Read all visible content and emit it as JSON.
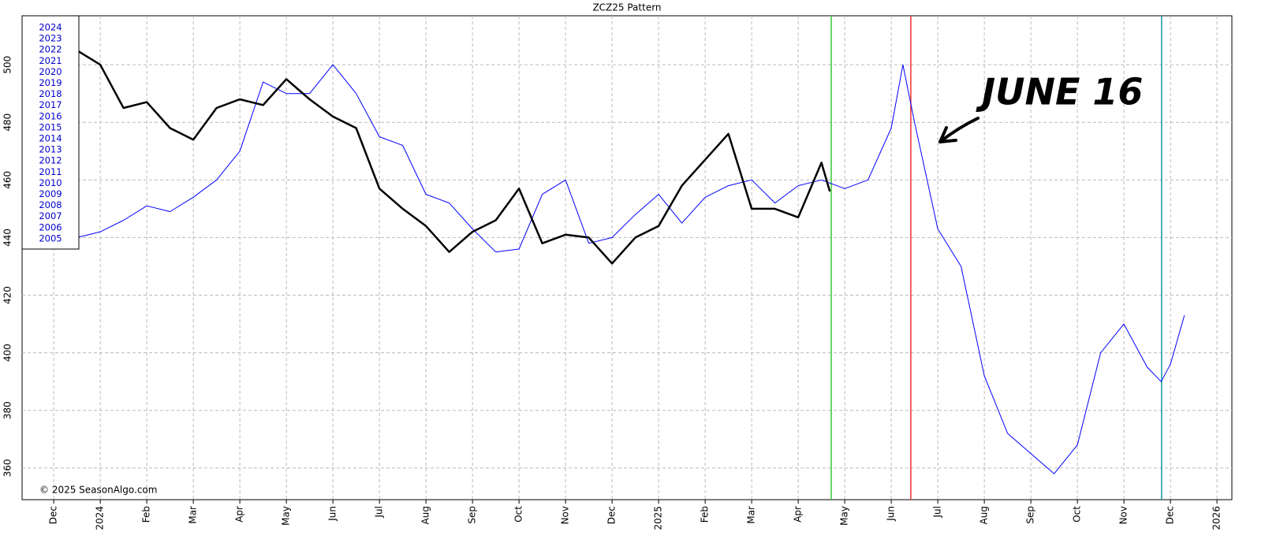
{
  "chart_data": {
    "type": "line",
    "title": "ZCZ25  Pattern",
    "annotation": "JUNE 16",
    "copyright": "© 2025 SeasonAlgo.com",
    "legend": [
      "2024",
      "2023",
      "2022",
      "2021",
      "2020",
      "2019",
      "2018",
      "2017",
      "2016",
      "2015",
      "2014",
      "2013",
      "2012",
      "2011",
      "2010",
      "2009",
      "2008",
      "2007",
      "2006",
      "2005"
    ],
    "xlim": [
      -0.68,
      25.32
    ],
    "ylim": [
      349,
      517
    ],
    "xticks": [
      {
        "value": 0,
        "label": "Dec"
      },
      {
        "value": 1,
        "label": "2024"
      },
      {
        "value": 2,
        "label": "Feb"
      },
      {
        "value": 3,
        "label": "Mar"
      },
      {
        "value": 4,
        "label": "Apr"
      },
      {
        "value": 5,
        "label": "May"
      },
      {
        "value": 6,
        "label": "Jun"
      },
      {
        "value": 7,
        "label": "Jul"
      },
      {
        "value": 8,
        "label": "Aug"
      },
      {
        "value": 9,
        "label": "Sep"
      },
      {
        "value": 10,
        "label": "Oct"
      },
      {
        "value": 11,
        "label": "Nov"
      },
      {
        "value": 12,
        "label": "Dec"
      },
      {
        "value": 13,
        "label": "2025"
      },
      {
        "value": 14,
        "label": "Feb"
      },
      {
        "value": 15,
        "label": "Mar"
      },
      {
        "value": 16,
        "label": "Apr"
      },
      {
        "value": 17,
        "label": "May"
      },
      {
        "value": 18,
        "label": "Jun"
      },
      {
        "value": 19,
        "label": "Jul"
      },
      {
        "value": 20,
        "label": "Aug"
      },
      {
        "value": 21,
        "label": "Sep"
      },
      {
        "value": 22,
        "label": "Oct"
      },
      {
        "value": 23,
        "label": "Nov"
      },
      {
        "value": 24,
        "label": "Dec"
      },
      {
        "value": 25,
        "label": "2026"
      }
    ],
    "yticks": [
      360,
      380,
      400,
      420,
      440,
      460,
      480,
      500
    ],
    "grid": true,
    "vlines": [
      {
        "x": 16.71,
        "color": "#33cc33"
      },
      {
        "x": 18.42,
        "color": "#ee3333"
      },
      {
        "x": 23.81,
        "color": "#1199aa"
      }
    ],
    "series": [
      {
        "color": "#0000ff",
        "width": 1,
        "x": [
          0.5,
          1,
          1.5,
          2,
          2.5,
          3,
          3.5,
          4,
          4.5,
          5,
          5.5,
          6,
          6.5,
          7,
          7.5,
          8,
          8.5,
          9,
          9.5,
          10,
          10.5,
          11,
          11.5,
          12,
          12.5,
          13,
          13.5,
          14,
          14.5,
          15,
          15.5,
          16,
          16.5,
          17,
          17.5,
          18,
          18.25,
          18.5,
          19,
          19.5,
          20,
          20.5,
          21,
          21.5,
          22,
          22.5,
          23,
          23.5,
          23.8,
          24,
          24.3
        ],
        "values": [
          440,
          442,
          446,
          451,
          449,
          454,
          460,
          470,
          494,
          490,
          490,
          500,
          490,
          475,
          472,
          455,
          452,
          443,
          435,
          436,
          455,
          460,
          438,
          440,
          448,
          455,
          445,
          454,
          458,
          460,
          452,
          458,
          460,
          457,
          460,
          478,
          500,
          480,
          443,
          430,
          392,
          372,
          365,
          358,
          368,
          400,
          410,
          395,
          390,
          396,
          413
        ]
      },
      {
        "color": "#000000",
        "width": 2.5,
        "x": [
          0.5,
          1,
          1.5,
          2,
          2.5,
          3,
          3.5,
          4,
          4.5,
          5,
          5.5,
          6,
          6.5,
          7,
          7.5,
          8,
          8.5,
          9,
          9.5,
          10,
          10.5,
          11,
          11.5,
          12,
          12.5,
          13,
          13.5,
          14,
          14.5,
          15,
          15.5,
          16,
          16.5,
          16.68
        ],
        "values": [
          505,
          500,
          485,
          487,
          478,
          474,
          485,
          488,
          486,
          495,
          488,
          482,
          478,
          457,
          450,
          444,
          435,
          442,
          446,
          457,
          438,
          441,
          440,
          431,
          440,
          444,
          458,
          467,
          476,
          450,
          450,
          447,
          466,
          456
        ]
      }
    ]
  }
}
